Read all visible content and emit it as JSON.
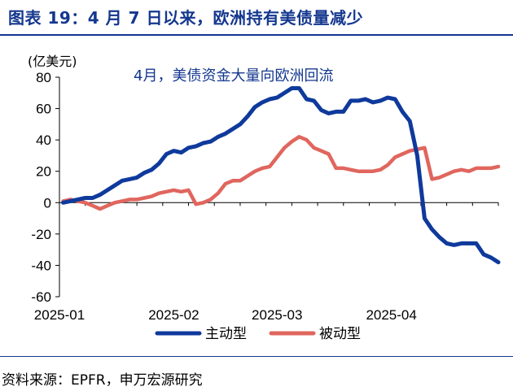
{
  "title": "图表 19：4 月 7 日以来，欧洲持有美债量减少",
  "source": "资料来源：EPFR，申万宏源研究",
  "chart_data": {
    "type": "line",
    "ylabel": "(亿美元)",
    "annotation": "4月，美债资金大量向欧洲回流",
    "ylim": [
      -60,
      80
    ],
    "yticks": [
      -60,
      -40,
      -20,
      0,
      20,
      40,
      60,
      80
    ],
    "x_range": [
      "2025-01-01",
      "2025-04-30"
    ],
    "xtick_labels": [
      {
        "label": "2025-01",
        "date": "2025-01-01"
      },
      {
        "label": "2025-02",
        "date": "2025-02-01"
      },
      {
        "label": "2025-03",
        "date": "2025-03-01"
      },
      {
        "label": "2025-04",
        "date": "2025-04-01"
      }
    ],
    "series": [
      {
        "name": "主动型",
        "color": "#0f3a9c",
        "x": [
          "2025-01-02",
          "2025-01-04",
          "2025-01-06",
          "2025-01-08",
          "2025-01-10",
          "2025-01-12",
          "2025-01-14",
          "2025-01-16",
          "2025-01-18",
          "2025-01-20",
          "2025-01-22",
          "2025-01-24",
          "2025-01-26",
          "2025-01-28",
          "2025-01-30",
          "2025-02-01",
          "2025-02-03",
          "2025-02-05",
          "2025-02-07",
          "2025-02-09",
          "2025-02-11",
          "2025-02-13",
          "2025-02-15",
          "2025-02-17",
          "2025-02-19",
          "2025-02-21",
          "2025-02-23",
          "2025-02-25",
          "2025-02-27",
          "2025-03-01",
          "2025-03-03",
          "2025-03-05",
          "2025-03-07",
          "2025-03-09",
          "2025-03-11",
          "2025-03-13",
          "2025-03-15",
          "2025-03-17",
          "2025-03-19",
          "2025-03-21",
          "2025-03-23",
          "2025-03-25",
          "2025-03-27",
          "2025-03-29",
          "2025-03-31",
          "2025-04-02",
          "2025-04-04",
          "2025-04-06",
          "2025-04-08",
          "2025-04-10",
          "2025-04-12",
          "2025-04-14",
          "2025-04-16",
          "2025-04-18",
          "2025-04-20",
          "2025-04-22",
          "2025-04-24",
          "2025-04-26",
          "2025-04-28",
          "2025-04-30"
        ],
        "values": [
          0,
          1,
          2,
          3,
          3,
          5,
          8,
          11,
          14,
          15,
          16,
          19,
          21,
          25,
          31,
          33,
          32,
          35,
          36,
          38,
          39,
          42,
          44,
          47,
          50,
          55,
          61,
          64,
          66,
          67,
          70,
          73,
          73,
          66,
          65,
          59,
          57,
          58,
          58,
          65,
          65,
          66,
          64,
          65,
          67,
          66,
          58,
          52,
          30,
          -10,
          -17,
          -22,
          -26,
          -27,
          -26,
          -26,
          -26,
          -33,
          -35,
          -38
        ]
      },
      {
        "name": "被动型",
        "color": "#e0665e",
        "x": [
          "2025-01-02",
          "2025-01-04",
          "2025-01-06",
          "2025-01-08",
          "2025-01-10",
          "2025-01-12",
          "2025-01-14",
          "2025-01-16",
          "2025-01-18",
          "2025-01-20",
          "2025-01-22",
          "2025-01-24",
          "2025-01-26",
          "2025-01-28",
          "2025-01-30",
          "2025-02-01",
          "2025-02-03",
          "2025-02-05",
          "2025-02-07",
          "2025-02-09",
          "2025-02-11",
          "2025-02-13",
          "2025-02-15",
          "2025-02-17",
          "2025-02-19",
          "2025-02-21",
          "2025-02-23",
          "2025-02-25",
          "2025-02-27",
          "2025-03-01",
          "2025-03-03",
          "2025-03-05",
          "2025-03-07",
          "2025-03-09",
          "2025-03-11",
          "2025-03-13",
          "2025-03-15",
          "2025-03-17",
          "2025-03-19",
          "2025-03-21",
          "2025-03-23",
          "2025-03-25",
          "2025-03-27",
          "2025-03-29",
          "2025-03-31",
          "2025-04-02",
          "2025-04-04",
          "2025-04-06",
          "2025-04-08",
          "2025-04-10",
          "2025-04-12",
          "2025-04-14",
          "2025-04-16",
          "2025-04-18",
          "2025-04-20",
          "2025-04-22",
          "2025-04-24",
          "2025-04-26",
          "2025-04-28",
          "2025-04-30"
        ],
        "values": [
          1,
          2,
          1,
          0,
          -2,
          -4,
          -2,
          0,
          1,
          2,
          2,
          3,
          4,
          6,
          7,
          8,
          7,
          8,
          -1,
          0,
          2,
          6,
          12,
          14,
          14,
          17,
          20,
          22,
          23,
          29,
          35,
          39,
          42,
          40,
          35,
          33,
          31,
          22,
          22,
          21,
          20,
          20,
          20,
          21,
          24,
          29,
          31,
          33,
          34,
          35,
          15,
          16,
          18,
          20,
          21,
          20,
          22,
          22,
          22,
          23
        ]
      }
    ]
  }
}
